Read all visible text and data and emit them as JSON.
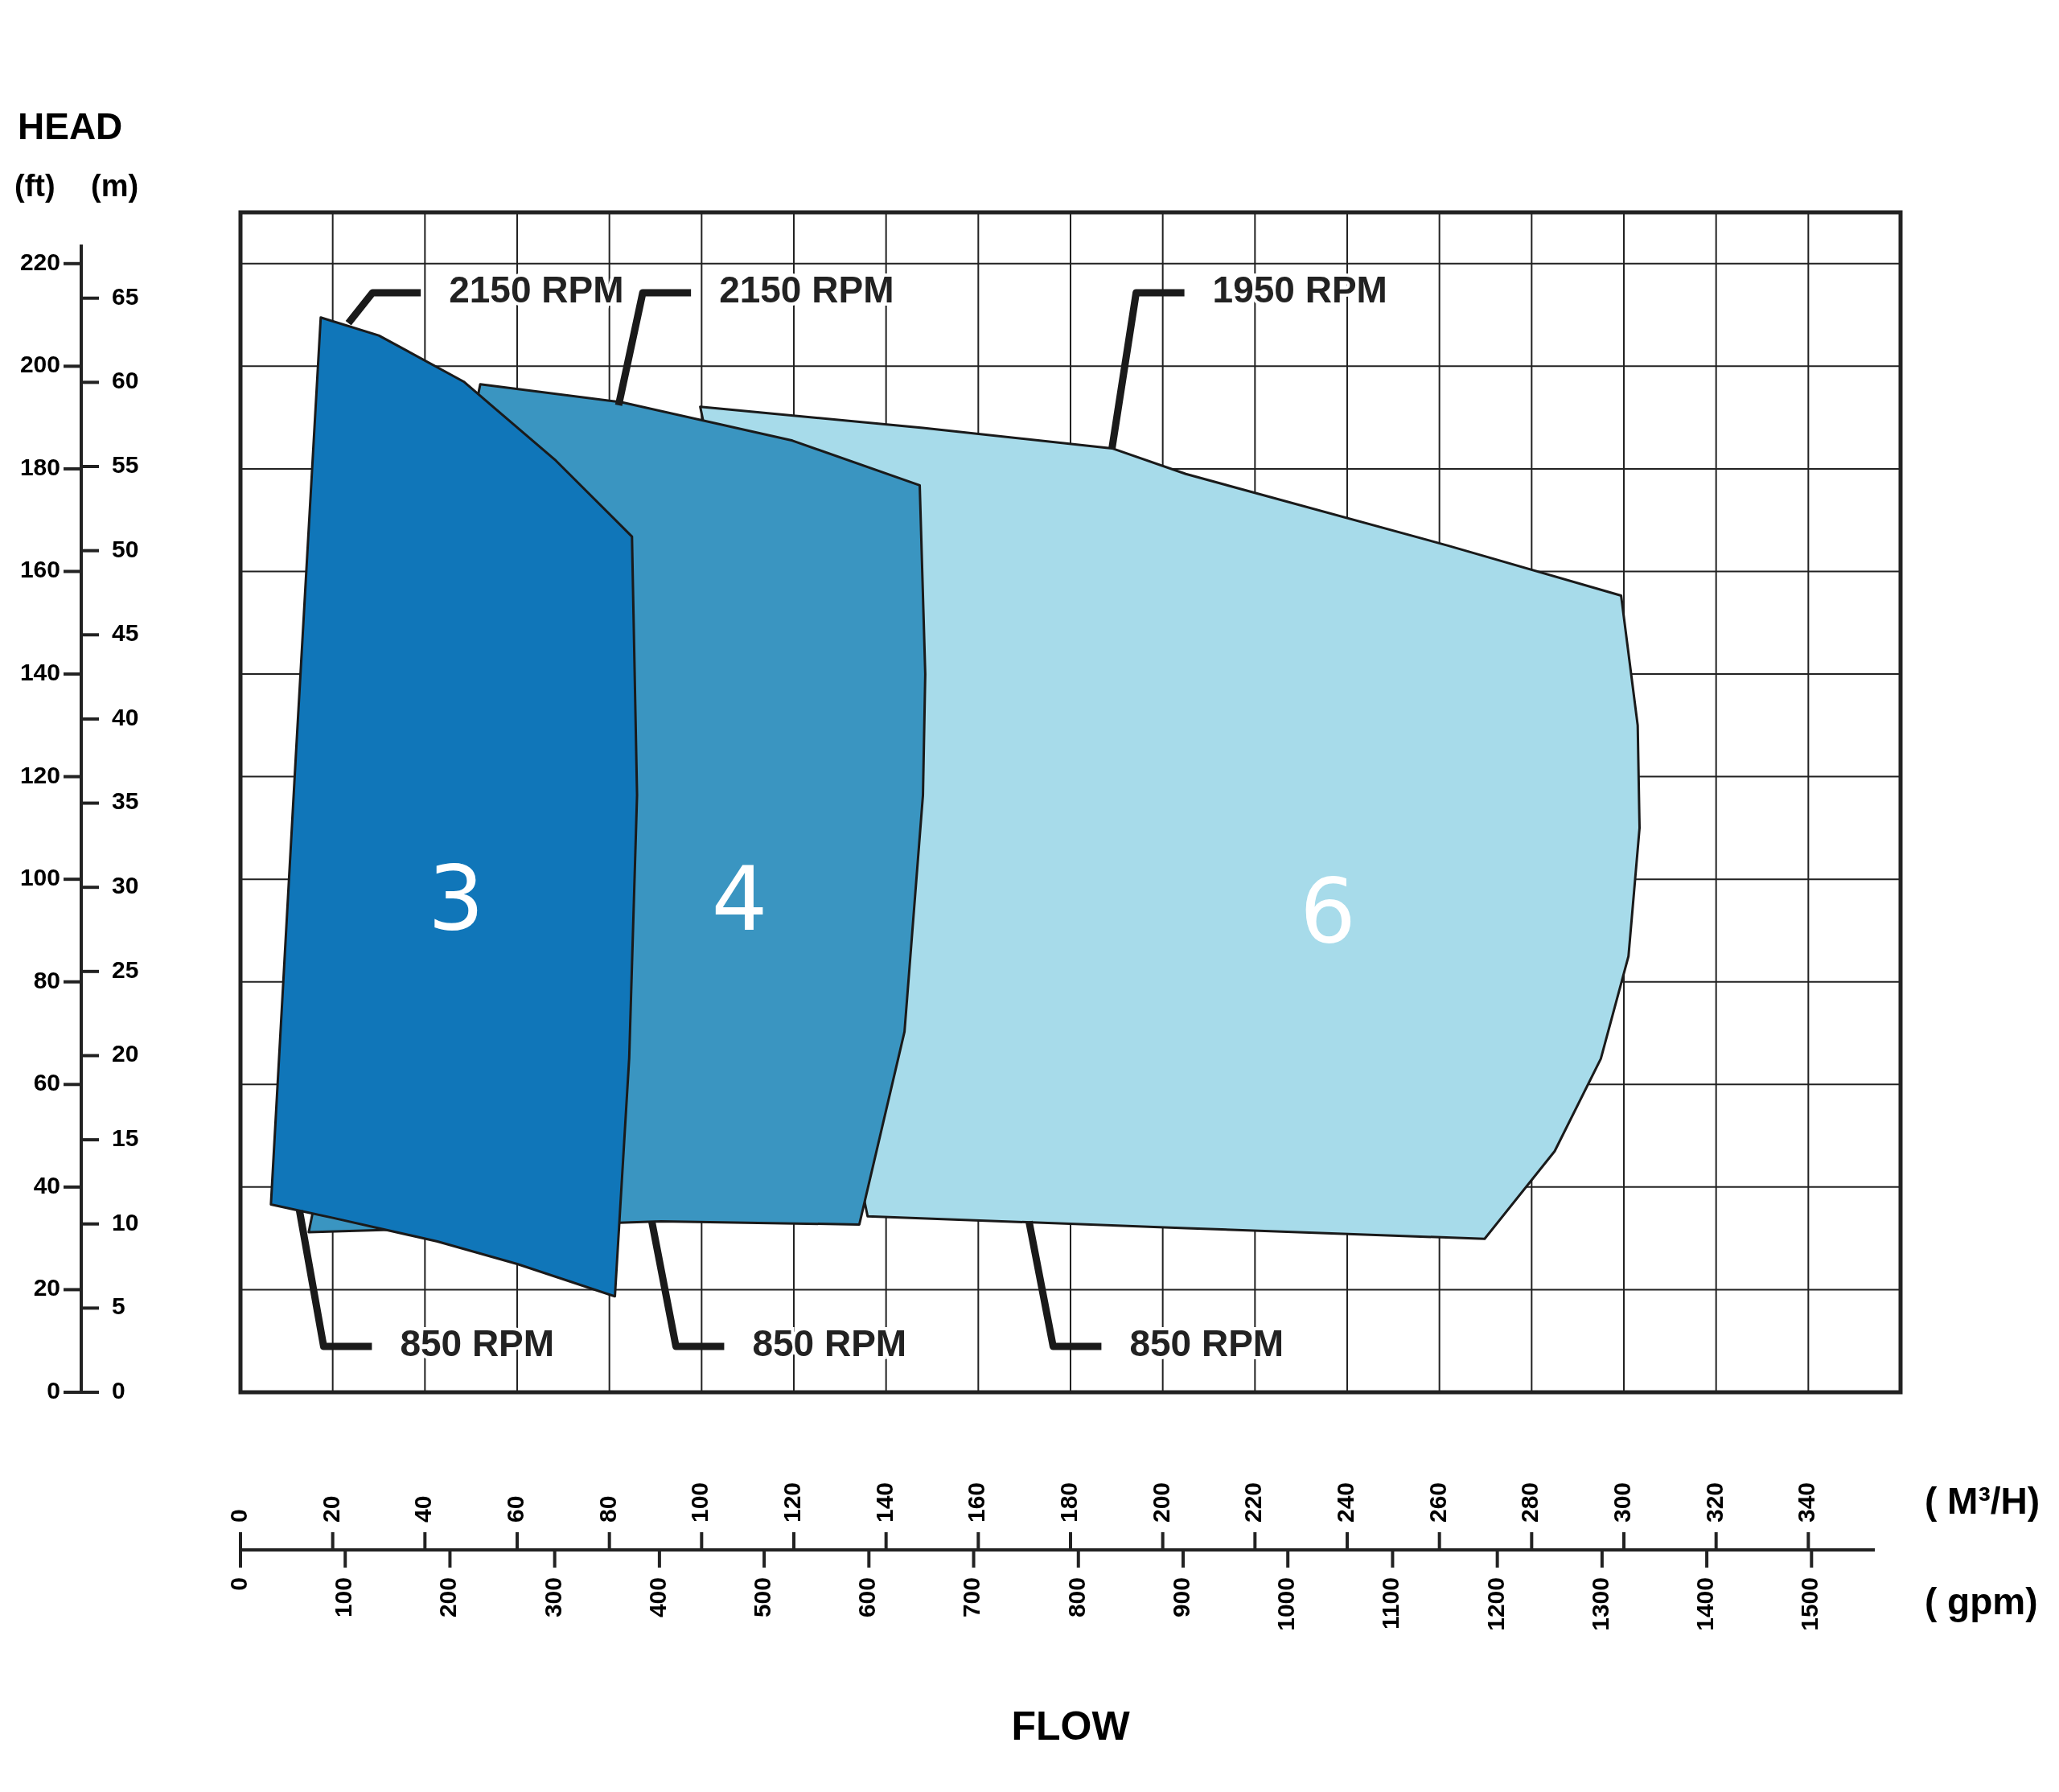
{
  "chart_data": {
    "type": "area",
    "title": "HEAD",
    "xlabel": "( M³/H)",
    "x2label": "( gpm)",
    "ylabel": "(ft)",
    "y2label": "(m)",
    "xlim": [
      0,
      360
    ],
    "xticks": [
      0,
      20,
      40,
      60,
      80,
      100,
      120,
      140,
      160,
      180,
      200,
      220,
      240,
      260,
      280,
      300,
      320,
      340
    ],
    "x2lim": [
      0,
      1585
    ],
    "x2ticks": [
      0,
      100,
      200,
      300,
      400,
      500,
      600,
      700,
      800,
      900,
      1000,
      1100,
      1200,
      1300,
      1400,
      1500
    ],
    "ylim": [
      0,
      230
    ],
    "yticks": [
      0,
      20,
      40,
      60,
      80,
      100,
      120,
      140,
      160,
      180,
      200,
      220
    ],
    "y2lim": [
      0,
      70.1
    ],
    "y2ticks": [
      0,
      5,
      10,
      15,
      20,
      25,
      30,
      35,
      40,
      45,
      50,
      55,
      60,
      65
    ],
    "grid": true,
    "series": [
      {
        "name": "6",
        "color": "#a7dbea",
        "x": [
          99.7,
          148,
          189,
          205,
          262,
          299.4,
          303,
          303.4,
          301,
          295,
          285,
          269.8,
          205,
          136
        ],
        "values": [
          192.1,
          188,
          184,
          179,
          165,
          155.3,
          130,
          110,
          85,
          65,
          47,
          29.9,
          32,
          34.3
        ]
      },
      {
        "name": "4",
        "color": "#3a95c1",
        "x": [
          52,
          82.6,
          119.7,
          147.3,
          148.5,
          148,
          144,
          134.2,
          91.2,
          14.8
        ],
        "values": [
          196.5,
          193,
          185.5,
          176.8,
          140,
          116.4,
          70.3,
          32.7,
          33.3,
          31.2
        ]
      },
      {
        "name": "3",
        "color": "#1076b9",
        "x": [
          17.4,
          30,
          48.4,
          68.4,
          84.9,
          86,
          84.3,
          81.2,
          60,
          42.7,
          20,
          12.8,
          6.6,
          12
        ],
        "values": [
          209.5,
          206,
          197,
          181.6,
          166.8,
          116.4,
          65.2,
          18.7,
          25,
          29.4,
          34,
          35.4,
          36.6,
          124
        ]
      }
    ],
    "annotations": [
      "FLOW",
      {
        "text": "2150 RPM",
        "x": 23.4,
        "y": 208.4
      },
      {
        "text": "2150 RPM",
        "x": 82,
        "y": 192.4
      },
      {
        "text": "1950 RPM",
        "x": 189,
        "y": 184
      },
      {
        "text": "850 RPM",
        "x": 12.8,
        "y": 35.4
      },
      {
        "text": "850 RPM",
        "x": 89.2,
        "y": 33.3
      },
      {
        "text": "850 RPM",
        "x": 171,
        "y": 33.3
      }
    ]
  }
}
